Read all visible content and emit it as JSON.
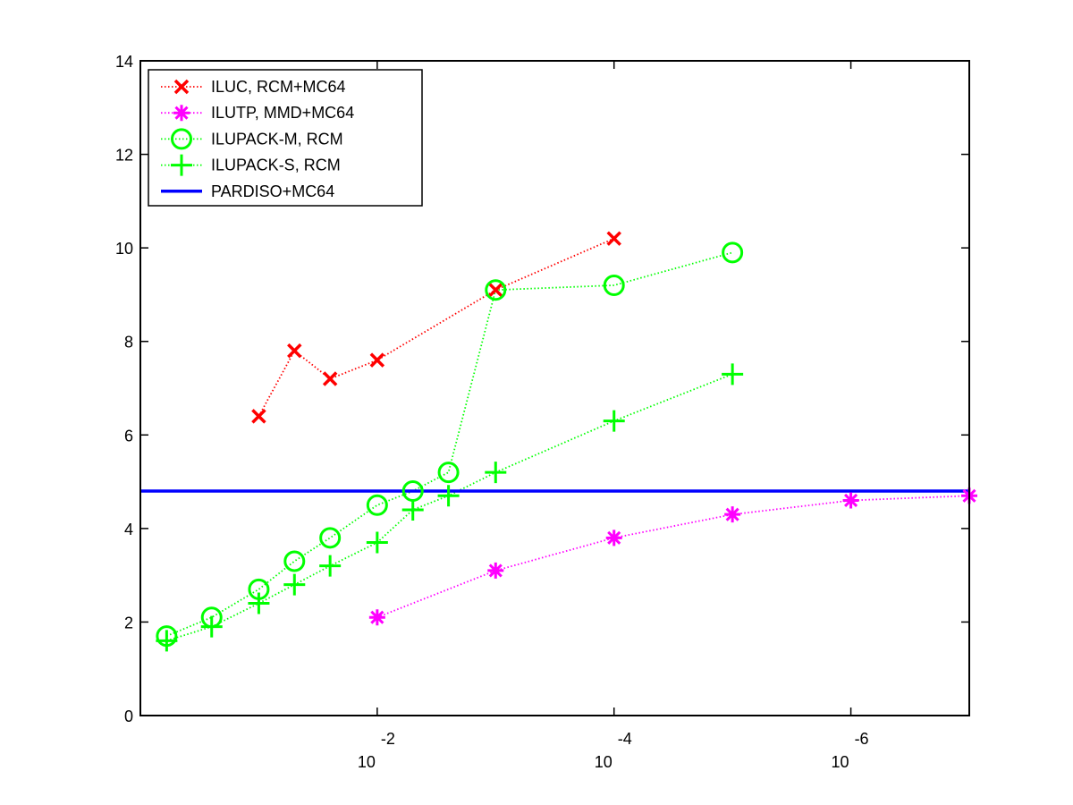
{
  "chart_data": {
    "type": "line",
    "title": "",
    "xlabel": "",
    "ylabel": "",
    "x_scale": "log-reversed",
    "xlim": [
      1,
      1e-07
    ],
    "ylim": [
      0,
      14
    ],
    "grid": false,
    "legend_position": "top-left",
    "yticks": [
      {
        "value": 0,
        "label": "0"
      },
      {
        "value": 2,
        "label": "2"
      },
      {
        "value": 4,
        "label": "4"
      },
      {
        "value": 6,
        "label": "6"
      },
      {
        "value": 8,
        "label": "8"
      },
      {
        "value": 10,
        "label": "10"
      },
      {
        "value": 12,
        "label": "12"
      },
      {
        "value": 14,
        "label": "14"
      }
    ],
    "xticks": [
      {
        "value": 0.01,
        "base": "10",
        "exp": "-2"
      },
      {
        "value": 0.0001,
        "base": "10",
        "exp": "-4"
      },
      {
        "value": 1e-06,
        "base": "10",
        "exp": "-6"
      }
    ],
    "series": [
      {
        "name": "ILUC, RCM+MC64",
        "color": "#ff0000",
        "marker": "x",
        "line": "dotted",
        "points": [
          {
            "x": 0.1,
            "y": 6.4
          },
          {
            "x": 0.05,
            "y": 7.8
          },
          {
            "x": 0.025,
            "y": 7.2
          },
          {
            "x": 0.01,
            "y": 7.6
          },
          {
            "x": 0.001,
            "y": 9.1
          },
          {
            "x": 0.0001,
            "y": 10.2
          }
        ]
      },
      {
        "name": "ILUTP, MMD+MC64",
        "color": "#ff00ff",
        "marker": "asterisk",
        "line": "dotted",
        "points": [
          {
            "x": 0.01,
            "y": 2.1
          },
          {
            "x": 0.001,
            "y": 3.1
          },
          {
            "x": 0.0001,
            "y": 3.8
          },
          {
            "x": 1e-05,
            "y": 4.3
          },
          {
            "x": 1e-06,
            "y": 4.6
          },
          {
            "x": 1e-07,
            "y": 4.7
          }
        ]
      },
      {
        "name": "ILUPACK-M, RCM",
        "color": "#00ff00",
        "marker": "circle",
        "line": "dotted",
        "points": [
          {
            "x": 0.6,
            "y": 1.7
          },
          {
            "x": 0.25,
            "y": 2.1
          },
          {
            "x": 0.1,
            "y": 2.7
          },
          {
            "x": 0.05,
            "y": 3.3
          },
          {
            "x": 0.025,
            "y": 3.8
          },
          {
            "x": 0.01,
            "y": 4.5
          },
          {
            "x": 0.005,
            "y": 4.8
          },
          {
            "x": 0.0025,
            "y": 5.2
          },
          {
            "x": 0.001,
            "y": 9.1
          },
          {
            "x": 0.0001,
            "y": 9.2
          },
          {
            "x": 1e-05,
            "y": 9.9
          }
        ]
      },
      {
        "name": "ILUPACK-S, RCM",
        "color": "#00ff00",
        "marker": "plus",
        "line": "dotted",
        "points": [
          {
            "x": 0.6,
            "y": 1.6
          },
          {
            "x": 0.25,
            "y": 1.9
          },
          {
            "x": 0.1,
            "y": 2.4
          },
          {
            "x": 0.05,
            "y": 2.8
          },
          {
            "x": 0.025,
            "y": 3.2
          },
          {
            "x": 0.01,
            "y": 3.7
          },
          {
            "x": 0.005,
            "y": 4.4
          },
          {
            "x": 0.0025,
            "y": 4.7
          },
          {
            "x": 0.001,
            "y": 5.2
          },
          {
            "x": 0.0001,
            "y": 6.3
          },
          {
            "x": 1e-05,
            "y": 7.3
          }
        ]
      },
      {
        "name": "PARDISO+MC64",
        "color": "#0000ff",
        "marker": "none",
        "line": "solid",
        "y_constant": 4.8
      }
    ]
  }
}
